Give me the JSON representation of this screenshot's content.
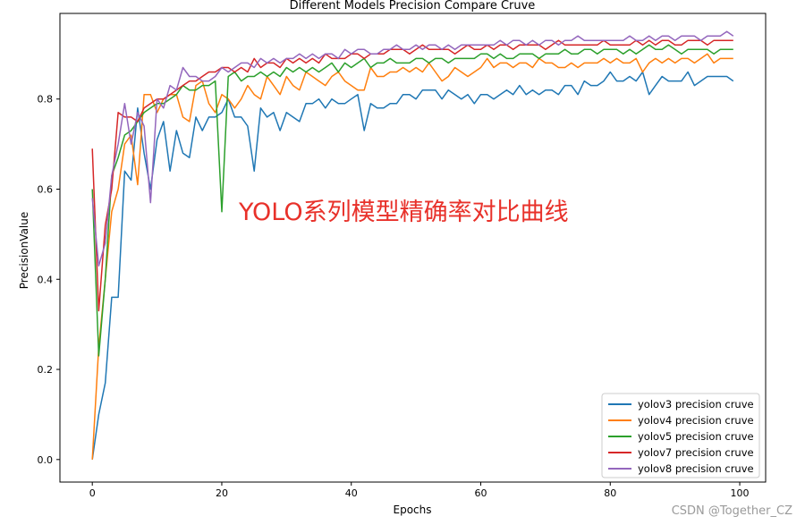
{
  "overlay_text": "YOLO系列模型精确率对比曲线",
  "credit": "CSDN @Together_CZ",
  "chart_data": {
    "type": "line",
    "title": "Different Models Precision Compare Cruve",
    "xlabel": "Epochs",
    "ylabel": "PrecisionValue",
    "xlim": [
      -5,
      104
    ],
    "ylim": [
      -0.05,
      0.99
    ],
    "xticks": [
      0,
      20,
      40,
      60,
      80,
      100
    ],
    "yticks": [
      0.0,
      0.2,
      0.4,
      0.6,
      0.8
    ],
    "grid": false,
    "legend_position": "lower-right",
    "x_start": 0,
    "series": [
      {
        "name": "yolov3 precision cruve",
        "color": "#1f77b4",
        "values": [
          0.0,
          0.1,
          0.17,
          0.36,
          0.36,
          0.64,
          0.62,
          0.78,
          0.68,
          0.6,
          0.71,
          0.75,
          0.64,
          0.73,
          0.68,
          0.67,
          0.76,
          0.73,
          0.76,
          0.76,
          0.77,
          0.8,
          0.76,
          0.76,
          0.74,
          0.64,
          0.78,
          0.76,
          0.77,
          0.73,
          0.77,
          0.76,
          0.75,
          0.79,
          0.79,
          0.8,
          0.78,
          0.8,
          0.79,
          0.79,
          0.8,
          0.81,
          0.73,
          0.79,
          0.78,
          0.78,
          0.79,
          0.79,
          0.81,
          0.81,
          0.8,
          0.82,
          0.82,
          0.82,
          0.8,
          0.82,
          0.81,
          0.8,
          0.81,
          0.79,
          0.81,
          0.81,
          0.8,
          0.81,
          0.82,
          0.81,
          0.83,
          0.81,
          0.82,
          0.81,
          0.82,
          0.82,
          0.81,
          0.83,
          0.83,
          0.81,
          0.84,
          0.83,
          0.83,
          0.84,
          0.86,
          0.84,
          0.84,
          0.85,
          0.84,
          0.86,
          0.81,
          0.83,
          0.85,
          0.84,
          0.84,
          0.84,
          0.86,
          0.83,
          0.84,
          0.85,
          0.85,
          0.85,
          0.85,
          0.84
        ]
      },
      {
        "name": "yolov4 precision cruve",
        "color": "#ff7f0e",
        "values": [
          0.0,
          0.25,
          0.4,
          0.55,
          0.6,
          0.7,
          0.72,
          0.61,
          0.81,
          0.81,
          0.77,
          0.8,
          0.81,
          0.81,
          0.76,
          0.75,
          0.83,
          0.84,
          0.79,
          0.77,
          0.81,
          0.8,
          0.78,
          0.8,
          0.83,
          0.81,
          0.8,
          0.85,
          0.83,
          0.81,
          0.85,
          0.83,
          0.82,
          0.86,
          0.85,
          0.84,
          0.83,
          0.85,
          0.86,
          0.84,
          0.83,
          0.82,
          0.82,
          0.87,
          0.85,
          0.85,
          0.86,
          0.86,
          0.87,
          0.86,
          0.87,
          0.86,
          0.88,
          0.86,
          0.84,
          0.85,
          0.87,
          0.86,
          0.85,
          0.86,
          0.87,
          0.89,
          0.87,
          0.88,
          0.88,
          0.87,
          0.88,
          0.88,
          0.87,
          0.89,
          0.88,
          0.88,
          0.87,
          0.87,
          0.88,
          0.87,
          0.88,
          0.88,
          0.88,
          0.89,
          0.88,
          0.89,
          0.88,
          0.88,
          0.89,
          0.86,
          0.88,
          0.89,
          0.88,
          0.89,
          0.88,
          0.89,
          0.89,
          0.88,
          0.89,
          0.9,
          0.88,
          0.89,
          0.89,
          0.89
        ]
      },
      {
        "name": "yolov5 precision cruve",
        "color": "#2ca02c",
        "values": [
          0.6,
          0.23,
          0.4,
          0.63,
          0.67,
          0.72,
          0.73,
          0.75,
          0.77,
          0.78,
          0.79,
          0.79,
          0.8,
          0.81,
          0.83,
          0.82,
          0.82,
          0.83,
          0.83,
          0.84,
          0.55,
          0.85,
          0.86,
          0.84,
          0.85,
          0.85,
          0.86,
          0.85,
          0.86,
          0.85,
          0.87,
          0.86,
          0.87,
          0.86,
          0.87,
          0.86,
          0.87,
          0.88,
          0.86,
          0.88,
          0.87,
          0.88,
          0.89,
          0.87,
          0.88,
          0.88,
          0.89,
          0.88,
          0.88,
          0.88,
          0.89,
          0.89,
          0.88,
          0.89,
          0.89,
          0.88,
          0.89,
          0.89,
          0.89,
          0.89,
          0.9,
          0.9,
          0.89,
          0.9,
          0.89,
          0.89,
          0.9,
          0.9,
          0.9,
          0.89,
          0.9,
          0.9,
          0.9,
          0.91,
          0.9,
          0.9,
          0.91,
          0.91,
          0.9,
          0.91,
          0.91,
          0.91,
          0.9,
          0.91,
          0.9,
          0.91,
          0.92,
          0.91,
          0.91,
          0.92,
          0.91,
          0.9,
          0.91,
          0.91,
          0.91,
          0.91,
          0.9,
          0.91,
          0.91,
          0.91
        ]
      },
      {
        "name": "yolov7 precision cruve",
        "color": "#d62728",
        "values": [
          0.69,
          0.33,
          0.52,
          0.6,
          0.77,
          0.76,
          0.76,
          0.75,
          0.78,
          0.79,
          0.8,
          0.8,
          0.81,
          0.82,
          0.83,
          0.84,
          0.84,
          0.85,
          0.86,
          0.86,
          0.87,
          0.87,
          0.86,
          0.87,
          0.86,
          0.89,
          0.87,
          0.88,
          0.88,
          0.87,
          0.89,
          0.88,
          0.89,
          0.88,
          0.89,
          0.88,
          0.9,
          0.89,
          0.89,
          0.89,
          0.9,
          0.9,
          0.89,
          0.9,
          0.9,
          0.9,
          0.91,
          0.91,
          0.91,
          0.9,
          0.91,
          0.92,
          0.91,
          0.91,
          0.91,
          0.91,
          0.9,
          0.91,
          0.92,
          0.91,
          0.91,
          0.92,
          0.91,
          0.92,
          0.92,
          0.91,
          0.92,
          0.92,
          0.92,
          0.92,
          0.91,
          0.92,
          0.93,
          0.92,
          0.92,
          0.92,
          0.92,
          0.92,
          0.92,
          0.93,
          0.92,
          0.92,
          0.92,
          0.92,
          0.93,
          0.92,
          0.93,
          0.92,
          0.93,
          0.93,
          0.92,
          0.92,
          0.93,
          0.93,
          0.93,
          0.92,
          0.93,
          0.93,
          0.93,
          0.93
        ]
      },
      {
        "name": "yolov8 precision cruve",
        "color": "#9467bd",
        "values": [
          0.58,
          0.43,
          0.48,
          0.63,
          0.7,
          0.79,
          0.7,
          0.77,
          0.74,
          0.57,
          0.8,
          0.78,
          0.83,
          0.82,
          0.87,
          0.85,
          0.85,
          0.84,
          0.84,
          0.85,
          0.87,
          0.86,
          0.87,
          0.88,
          0.88,
          0.87,
          0.89,
          0.88,
          0.89,
          0.88,
          0.89,
          0.89,
          0.9,
          0.89,
          0.9,
          0.89,
          0.9,
          0.9,
          0.89,
          0.91,
          0.9,
          0.91,
          0.91,
          0.9,
          0.9,
          0.91,
          0.91,
          0.92,
          0.91,
          0.91,
          0.92,
          0.91,
          0.92,
          0.92,
          0.91,
          0.92,
          0.91,
          0.92,
          0.92,
          0.92,
          0.92,
          0.92,
          0.92,
          0.93,
          0.92,
          0.93,
          0.93,
          0.92,
          0.93,
          0.92,
          0.93,
          0.93,
          0.92,
          0.93,
          0.93,
          0.94,
          0.93,
          0.93,
          0.93,
          0.93,
          0.93,
          0.93,
          0.93,
          0.94,
          0.93,
          0.93,
          0.94,
          0.93,
          0.94,
          0.94,
          0.93,
          0.94,
          0.94,
          0.94,
          0.93,
          0.94,
          0.94,
          0.94,
          0.95,
          0.94
        ]
      }
    ]
  }
}
